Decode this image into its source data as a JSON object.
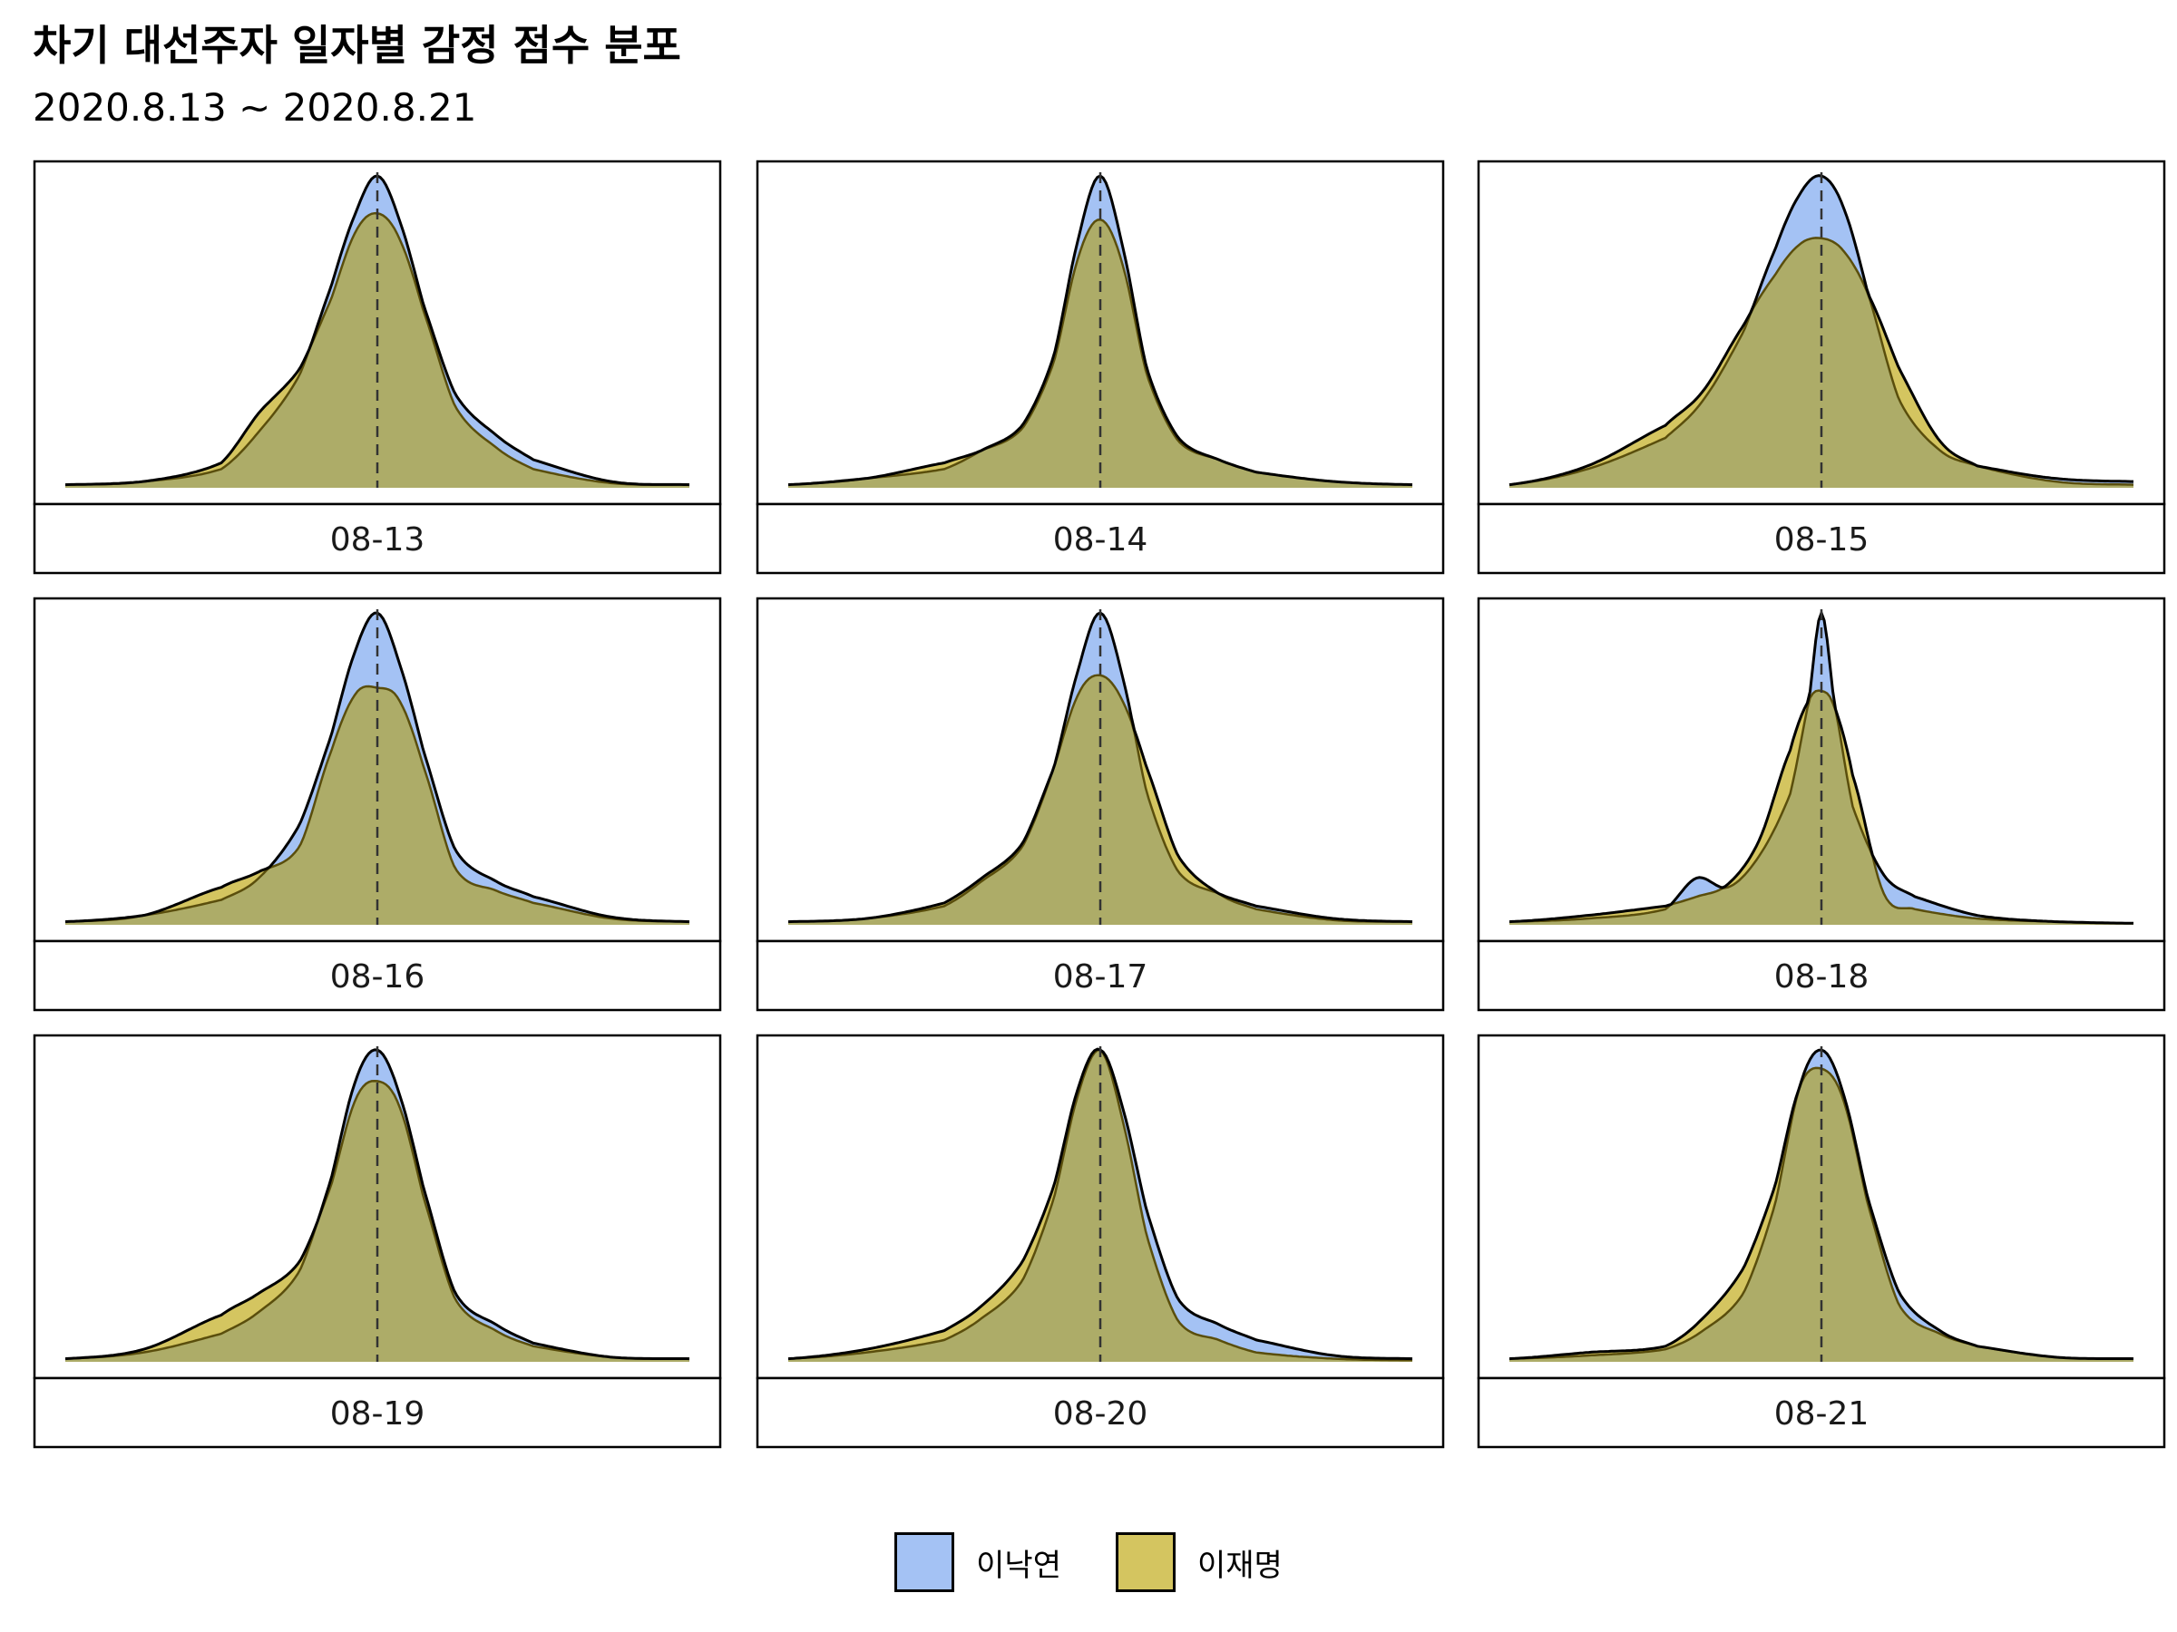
{
  "title": "차기 대선주자 일자별 감정 점수 분포",
  "subtitle": "2020.8.13 ~ 2020.8.21",
  "colors": {
    "이낙연": "#a4c2f4",
    "이재명": "#d4c560",
    "overlap": "#adac68",
    "outline": "#000000",
    "inner_outline": "#5a4e0c"
  },
  "chart_data": {
    "type": "area",
    "x_domain": [
      -1,
      1
    ],
    "series_names": [
      "이낙연",
      "이재명"
    ],
    "legend": "bottom",
    "reference_line_x": 0,
    "panels": [
      {
        "label": "08-13",
        "x": [
          -1,
          -0.75,
          -0.5,
          -0.38,
          -0.25,
          -0.15,
          -0.07,
          0,
          0.07,
          0.15,
          0.25,
          0.38,
          0.5,
          0.75,
          1
        ],
        "이낙연": [
          0.01,
          0.02,
          0.06,
          0.18,
          0.36,
          0.64,
          0.88,
          1.0,
          0.86,
          0.58,
          0.3,
          0.17,
          0.09,
          0.02,
          0.01
        ],
        "이재명": [
          0.01,
          0.02,
          0.08,
          0.24,
          0.38,
          0.6,
          0.82,
          0.88,
          0.8,
          0.56,
          0.26,
          0.13,
          0.06,
          0.015,
          0.01
        ]
      },
      {
        "label": "08-14",
        "x": [
          -1,
          -0.75,
          -0.5,
          -0.38,
          -0.25,
          -0.15,
          -0.07,
          0,
          0.07,
          0.15,
          0.25,
          0.38,
          0.5,
          0.75,
          1
        ],
        "이낙연": [
          0.01,
          0.03,
          0.06,
          0.12,
          0.2,
          0.42,
          0.8,
          1.0,
          0.78,
          0.38,
          0.16,
          0.09,
          0.05,
          0.02,
          0.01
        ],
        "이재명": [
          0.01,
          0.03,
          0.08,
          0.12,
          0.19,
          0.4,
          0.74,
          0.86,
          0.72,
          0.36,
          0.15,
          0.09,
          0.05,
          0.02,
          0.01
        ]
      },
      {
        "label": "08-15",
        "x": [
          -1,
          -0.75,
          -0.5,
          -0.38,
          -0.25,
          -0.15,
          -0.07,
          0,
          0.07,
          0.15,
          0.25,
          0.38,
          0.5,
          0.75,
          1
        ],
        "이낙연": [
          0.01,
          0.06,
          0.16,
          0.28,
          0.5,
          0.76,
          0.94,
          1.0,
          0.9,
          0.62,
          0.28,
          0.12,
          0.07,
          0.03,
          0.02
        ],
        "이재명": [
          0.01,
          0.07,
          0.2,
          0.31,
          0.52,
          0.68,
          0.78,
          0.8,
          0.76,
          0.62,
          0.38,
          0.15,
          0.07,
          0.02,
          0.01
        ]
      },
      {
        "label": "08-16",
        "x": [
          -1,
          -0.75,
          -0.5,
          -0.38,
          -0.25,
          -0.15,
          -0.07,
          0,
          0.07,
          0.15,
          0.25,
          0.38,
          0.5,
          0.75,
          1
        ],
        "이낙연": [
          0.01,
          0.03,
          0.08,
          0.15,
          0.32,
          0.6,
          0.88,
          1.0,
          0.84,
          0.55,
          0.24,
          0.14,
          0.09,
          0.025,
          0.01
        ],
        "이재명": [
          0.01,
          0.03,
          0.12,
          0.17,
          0.25,
          0.55,
          0.74,
          0.76,
          0.72,
          0.5,
          0.18,
          0.11,
          0.07,
          0.02,
          0.01
        ]
      },
      {
        "label": "08-17",
        "x": [
          -1,
          -0.75,
          -0.5,
          -0.38,
          -0.25,
          -0.15,
          -0.07,
          0,
          0.07,
          0.15,
          0.25,
          0.38,
          0.5,
          0.75,
          1
        ],
        "이낙연": [
          0.01,
          0.02,
          0.06,
          0.14,
          0.25,
          0.5,
          0.82,
          1.0,
          0.8,
          0.42,
          0.17,
          0.1,
          0.06,
          0.02,
          0.01
        ],
        "이재명": [
          0.01,
          0.02,
          0.07,
          0.15,
          0.26,
          0.5,
          0.74,
          0.8,
          0.72,
          0.5,
          0.22,
          0.1,
          0.05,
          0.015,
          0.01
        ]
      },
      {
        "label": "08-18",
        "x": [
          -1,
          -0.75,
          -0.5,
          -0.4,
          -0.3,
          -0.2,
          -0.1,
          -0.04,
          0,
          0.04,
          0.1,
          0.2,
          0.3,
          0.5,
          0.75,
          1
        ],
        "이낙연": [
          0.01,
          0.02,
          0.05,
          0.15,
          0.12,
          0.22,
          0.42,
          0.72,
          1.0,
          0.72,
          0.38,
          0.16,
          0.09,
          0.03,
          0.01,
          0.005
        ],
        "이재명": [
          0.01,
          0.03,
          0.06,
          0.09,
          0.13,
          0.27,
          0.56,
          0.72,
          0.75,
          0.7,
          0.48,
          0.1,
          0.05,
          0.02,
          0.01,
          0.005
        ]
      },
      {
        "label": "08-19",
        "x": [
          -1,
          -0.75,
          -0.5,
          -0.38,
          -0.25,
          -0.15,
          -0.07,
          0,
          0.07,
          0.15,
          0.25,
          0.38,
          0.5,
          0.75,
          1
        ],
        "이낙연": [
          0.01,
          0.03,
          0.09,
          0.16,
          0.29,
          0.58,
          0.9,
          1.0,
          0.86,
          0.55,
          0.22,
          0.12,
          0.06,
          0.015,
          0.01
        ],
        "이재명": [
          0.01,
          0.04,
          0.15,
          0.22,
          0.32,
          0.56,
          0.84,
          0.9,
          0.82,
          0.52,
          0.2,
          0.1,
          0.05,
          0.015,
          0.01
        ]
      },
      {
        "label": "08-20",
        "x": [
          -1,
          -0.75,
          -0.5,
          -0.38,
          -0.25,
          -0.15,
          -0.07,
          0,
          0.07,
          0.15,
          0.25,
          0.38,
          0.5,
          0.75,
          1
        ],
        "이낙연": [
          0.01,
          0.03,
          0.07,
          0.14,
          0.26,
          0.52,
          0.86,
          1.0,
          0.82,
          0.48,
          0.2,
          0.12,
          0.07,
          0.02,
          0.01
        ],
        "이재명": [
          0.01,
          0.04,
          0.1,
          0.18,
          0.32,
          0.56,
          0.88,
          1.0,
          0.78,
          0.4,
          0.13,
          0.07,
          0.03,
          0.01,
          0.005
        ]
      },
      {
        "label": "08-21",
        "x": [
          -1,
          -0.75,
          -0.5,
          -0.38,
          -0.25,
          -0.15,
          -0.07,
          0,
          0.07,
          0.15,
          0.25,
          0.38,
          0.5,
          0.75,
          1
        ],
        "이낙연": [
          0.01,
          0.02,
          0.04,
          0.1,
          0.22,
          0.5,
          0.88,
          1.0,
          0.86,
          0.52,
          0.22,
          0.1,
          0.05,
          0.015,
          0.01
        ],
        "이재명": [
          0.01,
          0.03,
          0.05,
          0.14,
          0.3,
          0.56,
          0.88,
          0.94,
          0.84,
          0.5,
          0.18,
          0.09,
          0.05,
          0.015,
          0.01
        ]
      }
    ]
  }
}
